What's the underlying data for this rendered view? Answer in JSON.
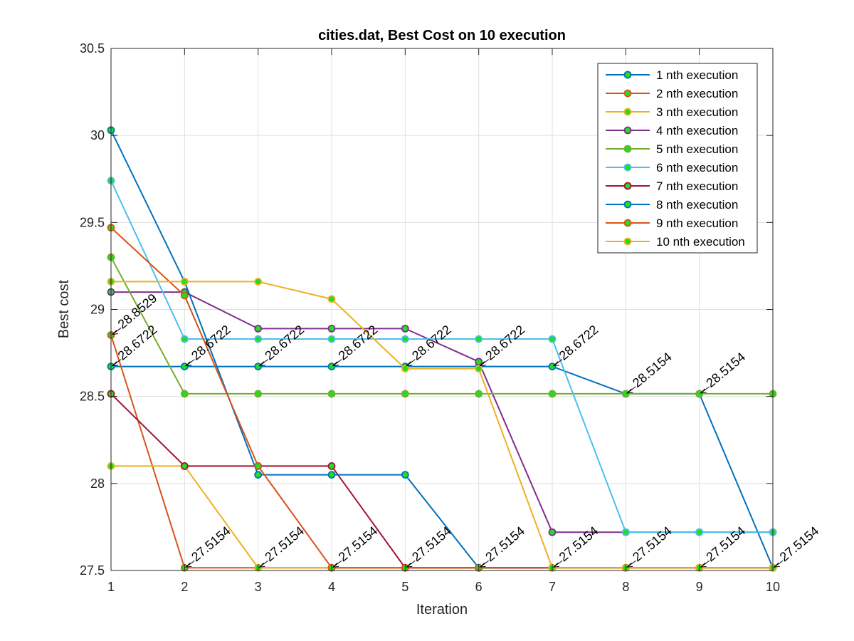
{
  "chart_data": {
    "type": "line",
    "title": "cities.dat, Best Cost on 10 execution",
    "xlabel": "Iteration",
    "ylabel": "Best cost",
    "xlim": [
      1,
      10
    ],
    "ylim": [
      27.5,
      30.5
    ],
    "xticks": [
      "1",
      "2",
      "3",
      "4",
      "5",
      "6",
      "7",
      "8",
      "9",
      "10"
    ],
    "yticks": [
      "27.5",
      "28",
      "28.5",
      "29",
      "29.5",
      "30",
      "30.5"
    ],
    "grid": true,
    "legend_position": "top-right",
    "marker_fill": "#22dd22",
    "x": [
      1,
      2,
      3,
      4,
      5,
      6,
      7,
      8,
      9,
      10
    ],
    "series": [
      {
        "name": "1 nth execution",
        "color": "#0072BD",
        "values": [
          28.6722,
          28.6722,
          28.6722,
          28.6722,
          28.6722,
          28.6722,
          28.6722,
          28.5154,
          28.5154,
          27.5154
        ]
      },
      {
        "name": "2 nth execution",
        "color": "#D95319",
        "values": [
          28.8529,
          27.5154,
          27.5154,
          27.5154,
          27.5154,
          27.5154,
          27.5154,
          27.5154,
          27.5154,
          27.5154
        ]
      },
      {
        "name": "3 nth execution",
        "color": "#EDB120",
        "values": [
          28.1,
          28.1,
          27.5154,
          27.5154,
          27.5154,
          27.5154,
          27.5154,
          27.5154,
          27.5154,
          27.5154
        ]
      },
      {
        "name": "4 nth execution",
        "color": "#7E2F8E",
        "values": [
          29.1,
          29.1,
          28.89,
          28.89,
          28.89,
          28.7,
          27.72,
          27.72,
          27.72,
          27.72
        ]
      },
      {
        "name": "5 nth execution",
        "color": "#77AC30",
        "values": [
          29.3,
          28.5154,
          28.5154,
          28.5154,
          28.5154,
          28.5154,
          28.5154,
          28.5154,
          28.5154,
          28.5154
        ]
      },
      {
        "name": "6 nth execution",
        "color": "#4DBEEE",
        "values": [
          29.74,
          28.83,
          28.83,
          28.83,
          28.83,
          28.83,
          28.83,
          27.72,
          27.72,
          27.72
        ]
      },
      {
        "name": "7 nth execution",
        "color": "#A2142F",
        "values": [
          28.5154,
          28.1,
          28.1,
          28.1,
          27.5154,
          27.5154,
          27.5154,
          27.5154,
          27.5154,
          27.5154
        ]
      },
      {
        "name": "8 nth execution",
        "color": "#0072BD",
        "values": [
          30.03,
          29.16,
          28.05,
          28.05,
          28.05,
          27.5154,
          27.5154,
          27.5154,
          27.5154,
          27.5154
        ]
      },
      {
        "name": "9 nth execution",
        "color": "#D95319",
        "values": [
          29.47,
          29.08,
          28.1,
          27.5154,
          27.5154,
          27.5154,
          27.5154,
          27.5154,
          27.5154,
          27.5154
        ]
      },
      {
        "name": "10 nth execution",
        "color": "#EDB120",
        "values": [
          29.16,
          29.16,
          29.16,
          29.06,
          28.66,
          28.66,
          27.5154,
          27.5154,
          27.5154,
          27.5154
        ]
      }
    ],
    "annotations": [
      {
        "x": 1,
        "y": 28.8529,
        "text": "28.8529"
      },
      {
        "x": 1,
        "y": 28.6722,
        "text": "28.6722"
      },
      {
        "x": 2,
        "y": 28.6722,
        "text": "28.6722"
      },
      {
        "x": 3,
        "y": 28.6722,
        "text": "28.6722"
      },
      {
        "x": 4,
        "y": 28.6722,
        "text": "28.6722"
      },
      {
        "x": 5,
        "y": 28.6722,
        "text": "28.6722"
      },
      {
        "x": 6,
        "y": 28.6722,
        "text": "28.6722"
      },
      {
        "x": 7,
        "y": 28.6722,
        "text": "28.6722"
      },
      {
        "x": 8,
        "y": 28.5154,
        "text": "28.5154"
      },
      {
        "x": 9,
        "y": 28.5154,
        "text": "28.5154"
      },
      {
        "x": 2,
        "y": 27.5154,
        "text": "27.5154"
      },
      {
        "x": 3,
        "y": 27.5154,
        "text": "27.5154"
      },
      {
        "x": 4,
        "y": 27.5154,
        "text": "27.5154"
      },
      {
        "x": 5,
        "y": 27.5154,
        "text": "27.5154"
      },
      {
        "x": 6,
        "y": 27.5154,
        "text": "27.5154"
      },
      {
        "x": 7,
        "y": 27.5154,
        "text": "27.5154"
      },
      {
        "x": 8,
        "y": 27.5154,
        "text": "27.5154"
      },
      {
        "x": 9,
        "y": 27.5154,
        "text": "27.5154"
      },
      {
        "x": 10,
        "y": 27.5154,
        "text": "27.5154"
      }
    ]
  }
}
